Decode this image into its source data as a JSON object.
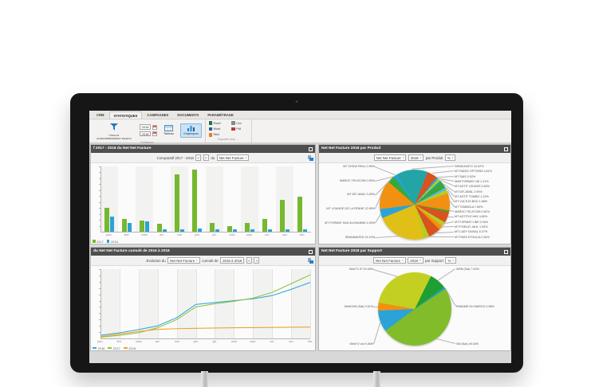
{
  "ribbon": {
    "tabs": [
      {
        "label": "CRM",
        "active": false
      },
      {
        "label": "STATISTIQUES",
        "active": true
      },
      {
        "label": "CAMPAGNES",
        "active": false
      },
      {
        "label": "DOCUMENTS",
        "active": false
      },
      {
        "label": "PARAMÉTRAGE",
        "active": false
      }
    ],
    "filter_button": {
      "line1": "ITISALAT",
      "line2": "ALMAGHRIB/MAROC TELECO"
    },
    "year_from": "2018",
    "year_to": "2018",
    "tableau_label": "Tableau",
    "graphiques_label": "Graphiques",
    "export_items": [
      {
        "label": "Excel",
        "color": "#217346"
      },
      {
        "label": "Word",
        "color": "#2b579a"
      },
      {
        "label": "Html",
        "color": "#e67e22"
      },
      {
        "label": "Csv",
        "color": "#7f8c8d"
      },
      {
        "label": "Pdf",
        "color": "#c0392b"
      }
    ],
    "caption_configurer": "Configurer",
    "caption_exporter": "Exporter vers ..."
  },
  "panels": {
    "comparatif": {
      "title": "f 2017 - 2018 du Net Net Facture",
      "toolbar_prefix": "Comparatif 2017 - 2018",
      "nav_prev": "<",
      "nav_next": ">",
      "toolbar_mid": "du",
      "measure_select": "Net Net Facture"
    },
    "evolution": {
      "title": "du Net Net Facture cumulé de 2016 à 2018",
      "toolbar_prefix": "Évolution du",
      "measure_select": "Net Net Facture",
      "toolbar_mid": "cumulé de",
      "range_select": "2016 à 2018",
      "nav_prev": "<",
      "nav_next": ">"
    },
    "produit": {
      "title": "Net Net Facture 2018 par Produit",
      "measure_select": "Net Net Facture",
      "year_select": "2018",
      "toolbar_mid": "par Produit",
      "unit_select": "%"
    },
    "support": {
      "title": "Net Net Facture 2018 par Support",
      "measure_select": "Net Net Facture",
      "year_select": "2018",
      "toolbar_mid": "par Support",
      "unit_select": "%"
    }
  },
  "chart_data": [
    {
      "id": "chart-bar",
      "type": "bar",
      "title": "Comparatif 2017 - 2018 du Net Net Facture",
      "categories": [
        "janv.",
        "févr.",
        "mars",
        "avr.",
        "mai",
        "juin",
        "juil.",
        "août",
        "sept.",
        "oct.",
        "nov.",
        "déc."
      ],
      "series": [
        {
          "name": "2017",
          "color": "#76b82e",
          "values": [
            4.0,
            2.2,
            1.9,
            1.3,
            9.6,
            10.4,
            1.5,
            1.0,
            1.5,
            2.2,
            5.3,
            5.9
          ]
        },
        {
          "name": "2018",
          "color": "#2ba3d8",
          "values": [
            2.5,
            1.5,
            1.8,
            0.35,
            0.35,
            0.5,
            0.35,
            0.35,
            0.35,
            0.4,
            0.35,
            0.4
          ]
        }
      ],
      "ylim": [
        0,
        11
      ],
      "legend_position": "bottom-left",
      "grid": true
    },
    {
      "id": "chart-line",
      "type": "line",
      "title": "Évolution du Net Net Facture cumulé de 2016 à 2018",
      "x": [
        "janv.",
        "févr.",
        "mars",
        "avr.",
        "mai",
        "juin",
        "juil.",
        "août",
        "sept.",
        "oct.",
        "nov.",
        "déc."
      ],
      "series": [
        {
          "name": "2016",
          "color": "#3aa9dc",
          "values": [
            0.5,
            0.9,
            1.4,
            2.0,
            3.3,
            5.4,
            5.7,
            6.0,
            6.3,
            6.8,
            7.8,
            8.9
          ]
        },
        {
          "name": "2017",
          "color": "#8cc63f",
          "values": [
            0.2,
            0.5,
            0.9,
            1.7,
            3.0,
            5.0,
            5.5,
            5.9,
            6.4,
            7.3,
            8.7,
            10.1
          ]
        },
        {
          "name": "2018",
          "color": "#f0a22e",
          "values": [
            0.3,
            0.7,
            1.1,
            1.45,
            1.55,
            1.6,
            1.65,
            1.7,
            1.72,
            1.75,
            1.78,
            1.8
          ]
        }
      ],
      "ylim": [
        0,
        11
      ],
      "legend_position": "bottom-left",
      "grid": true
    },
    {
      "id": "chart-pie-produit",
      "type": "pie",
      "title": "Net Net Facture 2018 par Produit",
      "start_angle_deg": -31,
      "r": 44,
      "slices": [
        {
          "label": "SRAN/JANTV 14.02%",
          "value": 14.02,
          "color": "#23a5a8",
          "side": "right"
        },
        {
          "label": "MT RADIO OPTIONS 4.61%",
          "value": 4.61,
          "color": "#d9531e",
          "side": "right"
        },
        {
          "label": "MT SAIS 0.92%",
          "value": 0.92,
          "color": "#2ba3d8",
          "side": "right"
        },
        {
          "label": "MAR FORMAT LIB 1.21%",
          "value": 1.21,
          "color": "#b9cc21",
          "side": "right"
        },
        {
          "label": "MT AGTIT LEHASS 0.83%",
          "value": 0.83,
          "color": "#23a5a8",
          "side": "right"
        },
        {
          "label": "MT DR JAVAL 2.94%",
          "value": 2.94,
          "color": "#39a935",
          "side": "right"
        },
        {
          "label": "MT AGTIT TOMBO 1.12%",
          "value": 1.12,
          "color": "#56b9e8",
          "side": "right"
        },
        {
          "label": "MT VULTUS BOU 1.68%",
          "value": 1.68,
          "color": "#b9cc21",
          "side": "right"
        },
        {
          "label": "MT TOMBOLA 7.63%",
          "value": 7.63,
          "color": "#f29111",
          "side": "right"
        },
        {
          "label": "MAROC TELECOM 0.81%",
          "value": 0.81,
          "color": "#39a935",
          "side": "right"
        },
        {
          "label": "MT AGTITLE HAY 4.82%",
          "value": 4.82,
          "color": "#d9531e",
          "side": "right"
        },
        {
          "label": "MT FORMAT LIBE 2.04%",
          "value": 2.04,
          "color": "#b9cc21",
          "side": "right"
        },
        {
          "label": "MT POELIO JAHL 1.93%",
          "value": 1.93,
          "color": "#f29111",
          "side": "right"
        },
        {
          "label": "MT LADY SAISAL 5.37%",
          "value": 5.37,
          "color": "#d9531e",
          "side": "right"
        },
        {
          "label": "MT PASS ETOULIA 2.54%",
          "value": 2.54,
          "color": "#b9cc21",
          "side": "right"
        },
        {
          "label": "SRANIMATED 22.10%",
          "value": 22.1,
          "color": "#e0bf17",
          "side": "left"
        },
        {
          "label": "MT FORMAT HAD ALOHANNE 4.05%",
          "value": 4.05,
          "color": "#2ba3d8",
          "side": "left"
        },
        {
          "label": "MT LOUNGE DE LA PENNE 12.95%",
          "value": 12.95,
          "color": "#f29111",
          "side": "left"
        },
        {
          "label": "MT DR JAVAL 3.05%",
          "value": 3.05,
          "color": "#39a935",
          "side": "left"
        },
        {
          "label": "MAROC TELECOM 0.90%",
          "value": 0.9,
          "color": "#23a5a8",
          "side": "left"
        },
        {
          "label": "MT SHOW REAL 0.90%",
          "value": 0.9,
          "color": "#2ba3d8",
          "side": "left"
        }
      ]
    },
    {
      "id": "chart-pie-support",
      "type": "pie",
      "title": "Net Net Facture 2018 par Support",
      "start_angle_deg": -80,
      "r": 46,
      "slices": [
        {
          "label": "WebTV IP 29.49%",
          "value": 29.49,
          "color": "#c3d021",
          "side": "left"
        },
        {
          "label": "WEB (Sat) 7.52%",
          "value": 7.52,
          "color": "#1f9e33",
          "side": "right"
        },
        {
          "label": "PANAME DU MAROC 0.98%",
          "value": 0.98,
          "color": "#23a5a8",
          "side": "right"
        },
        {
          "label": "SM (Sat) 49.04%",
          "value": 49.04,
          "color": "#82bc2a",
          "side": "right"
        },
        {
          "label": "WebTV via 9.46%",
          "value": 9.46,
          "color": "#2ba3d8",
          "side": "left"
        },
        {
          "label": "WebDVM (Sat) 3.51%",
          "value": 3.51,
          "color": "#f29111",
          "side": "left"
        }
      ]
    }
  ]
}
